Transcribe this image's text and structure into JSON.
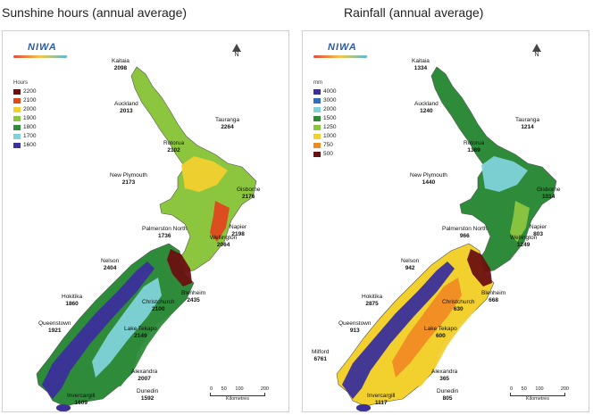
{
  "maps": [
    {
      "title": "Sunshine hours (annual average)",
      "logo": "NIWA",
      "legend_title": "Hours",
      "legend": [
        {
          "label": "2200",
          "color": "#6b1010"
        },
        {
          "label": "2100",
          "color": "#e0481e"
        },
        {
          "label": "2000",
          "color": "#f2d02e"
        },
        {
          "label": "1900",
          "color": "#8cc63e"
        },
        {
          "label": "1800",
          "color": "#2e8b3a"
        },
        {
          "label": "1700",
          "color": "#7fd3d8"
        },
        {
          "label": "1600",
          "color": "#3a2f9b"
        }
      ],
      "north": "N",
      "locations": [
        {
          "name": "Kaitaia",
          "value": "2098"
        },
        {
          "name": "Auckland",
          "value": "2013"
        },
        {
          "name": "Tauranga",
          "value": "2264"
        },
        {
          "name": "Rotorua",
          "value": "2102"
        },
        {
          "name": "New Plymouth",
          "value": "2173"
        },
        {
          "name": "Gisborne",
          "value": "2176"
        },
        {
          "name": "Napier",
          "value": "2198"
        },
        {
          "name": "Palmerston North",
          "value": "1736"
        },
        {
          "name": "Wellington",
          "value": "2064"
        },
        {
          "name": "Nelson",
          "value": "2404"
        },
        {
          "name": "Blenheim",
          "value": "2435"
        },
        {
          "name": "Hokitika",
          "value": "1860"
        },
        {
          "name": "Christchurch",
          "value": "2100"
        },
        {
          "name": "Queenstown",
          "value": "1921"
        },
        {
          "name": "Lake Tekapo",
          "value": "2149"
        },
        {
          "name": "Alexandra",
          "value": "2007"
        },
        {
          "name": "Dunedin",
          "value": "1592"
        },
        {
          "name": "Invercargill",
          "value": "1609"
        }
      ],
      "scale_ticks": [
        "0",
        "50",
        "100",
        "",
        "200"
      ],
      "scale_label": "Kilometres",
      "colors": {
        "north": "#8cc63e",
        "south_w": "#3a2f9b",
        "south_e": "#2e8b3a",
        "south_c": "#7fd3d8",
        "hot": "#6b1010",
        "mid": "#f2d02e",
        "warm": "#e0481e"
      }
    },
    {
      "title": "Rainfall (annual average)",
      "logo": "NIWA",
      "legend_title": "mm",
      "legend": [
        {
          "label": "4000",
          "color": "#3a2f9b"
        },
        {
          "label": "3000",
          "color": "#2e6fc0"
        },
        {
          "label": "2000",
          "color": "#7fd3d8"
        },
        {
          "label": "1500",
          "color": "#2e8b3a"
        },
        {
          "label": "1250",
          "color": "#8cc63e"
        },
        {
          "label": "1000",
          "color": "#f2d02e"
        },
        {
          "label": "750",
          "color": "#f08a24"
        },
        {
          "label": "500",
          "color": "#6b1010"
        }
      ],
      "north": "N",
      "locations": [
        {
          "name": "Kaitaia",
          "value": "1334"
        },
        {
          "name": "Auckland",
          "value": "1240"
        },
        {
          "name": "Tauranga",
          "value": "1214"
        },
        {
          "name": "Rotorua",
          "value": "1389"
        },
        {
          "name": "New Plymouth",
          "value": "1440"
        },
        {
          "name": "Gisborne",
          "value": "1014"
        },
        {
          "name": "Napier",
          "value": "803"
        },
        {
          "name": "Palmerston North",
          "value": "966"
        },
        {
          "name": "Wellington",
          "value": "1249"
        },
        {
          "name": "Nelson",
          "value": "942"
        },
        {
          "name": "Blenheim",
          "value": "668"
        },
        {
          "name": "Hokitika",
          "value": "2875"
        },
        {
          "name": "Christchurch",
          "value": "630"
        },
        {
          "name": "Queenstown",
          "value": "913"
        },
        {
          "name": "Lake Tekapo",
          "value": "600"
        },
        {
          "name": "Milford",
          "value": "6761"
        },
        {
          "name": "Alexandra",
          "value": "365"
        },
        {
          "name": "Dunedin",
          "value": "805"
        },
        {
          "name": "Invercargill",
          "value": "1117"
        }
      ],
      "scale_ticks": [
        "0",
        "50",
        "100",
        "",
        "200"
      ],
      "scale_label": "Kilometres",
      "colors": {
        "north": "#2e8b3a",
        "south_w": "#3a2f9b",
        "south_e": "#f2d02e",
        "south_c": "#f08a24",
        "hot": "#6b1010",
        "mid": "#7fd3d8",
        "warm": "#8cc63e"
      }
    }
  ]
}
